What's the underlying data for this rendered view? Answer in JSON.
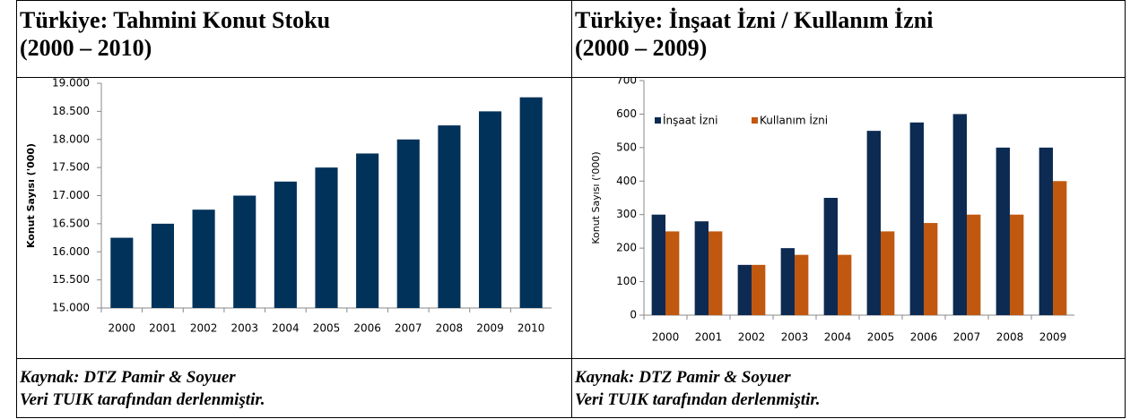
{
  "chart_data": [
    {
      "type": "bar",
      "title": "Türkiye: Tahmini Konut Stoku",
      "subtitle": "(2000 – 2010)",
      "y_label": "Konut Sayısı ('000)",
      "categories": [
        "2000",
        "2001",
        "2002",
        "2003",
        "2004",
        "2005",
        "2006",
        "2007",
        "2008",
        "2009",
        "2010"
      ],
      "series": [
        {
          "name": null,
          "color": "#00325a",
          "values": [
            16250,
            16500,
            16750,
            17000,
            17250,
            17500,
            17750,
            18000,
            18250,
            18500,
            18750
          ]
        }
      ],
      "ylim": [
        15000,
        19000
      ],
      "yticks": [
        {
          "value": 15000,
          "label": "15.000"
        },
        {
          "value": 15500,
          "label": "15.500"
        },
        {
          "value": 16000,
          "label": "16.000"
        },
        {
          "value": 16500,
          "label": "16.500"
        },
        {
          "value": 17000,
          "label": "17.000"
        },
        {
          "value": 17500,
          "label": "17.500"
        },
        {
          "value": 18000,
          "label": "18.000"
        },
        {
          "value": 18500,
          "label": "18.500"
        },
        {
          "value": 19000,
          "label": "19.000"
        }
      ],
      "grid": false,
      "legend": null,
      "source": "Kaynak: DTZ Pamir & Soyuer",
      "note": "Veri TUIK tarafından derlenmiştir."
    },
    {
      "type": "bar",
      "title": "Türkiye: İnşaat İzni / Kullanım İzni",
      "subtitle": "(2000 – 2009)",
      "y_label": "Konut Sayısı ('000)",
      "categories": [
        "2000",
        "2001",
        "2002",
        "2003",
        "2004",
        "2005",
        "2006",
        "2007",
        "2008",
        "2009"
      ],
      "series": [
        {
          "name": "İnşaat İzni",
          "color": "#0d2b52",
          "values": [
            300,
            280,
            150,
            200,
            350,
            550,
            575,
            600,
            500,
            500
          ]
        },
        {
          "name": "Kullanım İzni",
          "color": "#c0580f",
          "values": [
            250,
            250,
            150,
            180,
            180,
            250,
            275,
            300,
            300,
            400
          ]
        }
      ],
      "ylim": [
        0,
        700
      ],
      "yticks": [
        0,
        100,
        200,
        300,
        400,
        500,
        600,
        700
      ],
      "grid": false,
      "legend": "top-left",
      "source": "Kaynak: DTZ Pamir & Soyuer",
      "note": "Veri TUIK tarafından derlenmiştir."
    }
  ]
}
